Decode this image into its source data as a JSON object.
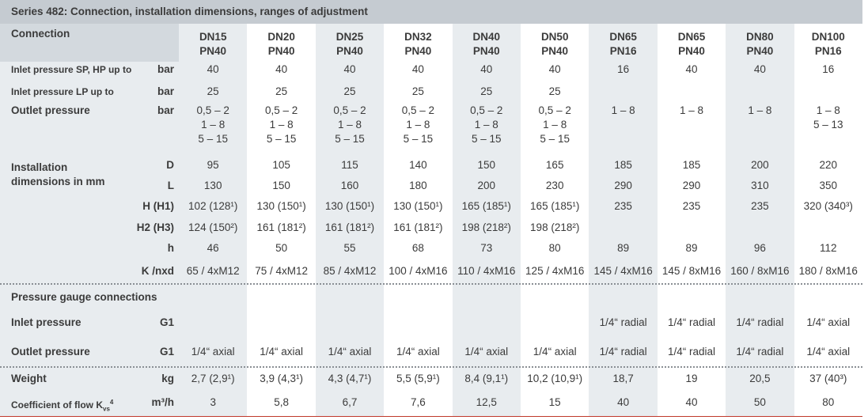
{
  "title": "Series 482: Connection, installation dimensions, ranges of adjustment",
  "header": {
    "label": "Connection",
    "columns": [
      [
        "DN15",
        "PN40"
      ],
      [
        "DN20",
        "PN40"
      ],
      [
        "DN25",
        "PN40"
      ],
      [
        "DN32",
        "PN40"
      ],
      [
        "DN40",
        "PN40"
      ],
      [
        "DN50",
        "PN40"
      ],
      [
        "DN65",
        "PN16"
      ],
      [
        "DN65",
        "PN40"
      ],
      [
        "DN80",
        "PN40"
      ],
      [
        "DN100",
        "PN16"
      ]
    ]
  },
  "pressure_rows": [
    {
      "label": "Inlet pressure SP, HP up to",
      "unit": "bar",
      "values": [
        40,
        40,
        40,
        40,
        40,
        40,
        16,
        40,
        40,
        16
      ]
    },
    {
      "label": "Inlet pressure LP up to",
      "unit": "bar",
      "values": [
        25,
        25,
        25,
        25,
        25,
        25,
        null,
        null,
        null,
        null
      ]
    },
    {
      "label": "Outlet pressure",
      "unit": "bar",
      "values": [
        [
          "0,5 – 2",
          "1 – 8",
          "5 – 15"
        ],
        [
          "0,5 – 2",
          "1 – 8",
          "5 – 15"
        ],
        [
          "0,5 – 2",
          "1 – 8",
          "5 – 15"
        ],
        [
          "0,5 – 2",
          "1 – 8",
          "5 – 15"
        ],
        [
          "0,5 – 2",
          "1 – 8",
          "5 – 15"
        ],
        [
          "0,5 – 2",
          "1 – 8",
          "5 – 15"
        ],
        [
          "1 – 8"
        ],
        [
          "1 – 8"
        ],
        [
          "1 – 8"
        ],
        [
          "1 – 8",
          "5 – 13"
        ]
      ]
    }
  ],
  "dimensions": {
    "label": "Installation dimensions in mm",
    "rows": [
      {
        "unit": "D",
        "values": [
          95,
          105,
          115,
          140,
          150,
          165,
          185,
          185,
          200,
          220
        ]
      },
      {
        "unit": "L",
        "values": [
          130,
          150,
          160,
          180,
          200,
          230,
          290,
          290,
          310,
          350
        ]
      },
      {
        "unit": "H (H1)",
        "values": [
          "102 (128¹)",
          "130 (150¹)",
          "130 (150¹)",
          "130 (150¹)",
          "165 (185¹)",
          "165 (185¹)",
          235,
          235,
          235,
          "320 (340³)"
        ]
      },
      {
        "unit": "H2 (H3)",
        "values": [
          "124 (150²)",
          "161 (181²)",
          "161 (181²)",
          "161 (181²)",
          "198 (218²)",
          "198 (218²)",
          null,
          null,
          null,
          null
        ]
      },
      {
        "unit": "h",
        "values": [
          46,
          50,
          55,
          68,
          73,
          80,
          89,
          89,
          96,
          112
        ]
      },
      {
        "unit": "K /nxd",
        "values": [
          "65 / 4xM12",
          "75 / 4xM12",
          "85 / 4xM12",
          "100 / 4xM16",
          "110 / 4xM16",
          "125 / 4xM16",
          "145 / 4xM16",
          "145 / 8xM16",
          "160 / 8xM16",
          "180 / 8xM16"
        ]
      }
    ]
  },
  "gauge": {
    "title": "Pressure gauge connections",
    "rows": [
      {
        "label": "Inlet pressure",
        "unit": "G1",
        "values": [
          null,
          null,
          null,
          null,
          null,
          null,
          "1/4“ radial",
          "1/4“ radial",
          "1/4“ radial",
          "1/4“ axial"
        ]
      },
      {
        "label": "Outlet pressure",
        "unit": "G1",
        "values": [
          "1/4“ axial",
          "1/4“ axial",
          "1/4“ axial",
          "1/4“ axial",
          "1/4“ axial",
          "1/4“ axial",
          "1/4“ radial",
          "1/4“ radial",
          "1/4“ radial",
          "1/4“ axial"
        ]
      }
    ]
  },
  "weight": {
    "label": "Weight",
    "unit": "kg",
    "values": [
      "2,7 (2,9¹)",
      "3,9 (4,3¹)",
      "4,3 (4,7¹)",
      "5,5 (5,9¹)",
      "8,4 (9,1¹)",
      "10,2 (10,9¹)",
      "18,7",
      19,
      "20,5",
      "37 (40³)"
    ]
  },
  "flow": {
    "label": "Coefficient of flow K",
    "label_sub": "vs",
    "label_sup": "4",
    "unit": "m³/h",
    "values": [
      3,
      "5,8",
      "6,7",
      "7,6",
      "12,5",
      15,
      40,
      40,
      50,
      80
    ]
  }
}
